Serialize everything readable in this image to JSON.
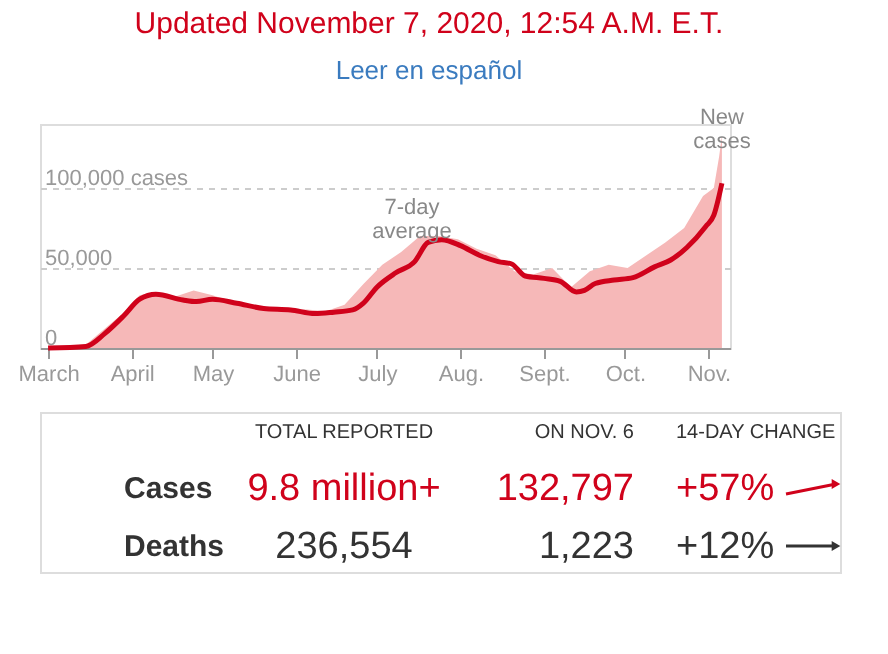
{
  "chart_data": {
    "type": "area",
    "title": "Updated November 7, 2020, 12:54 A.M. E.T.",
    "subtitle": "Leer en español",
    "xlim": [
      "2020-02-27",
      "2020-11-09"
    ],
    "xticks": [
      {
        "value": "2020-03-01",
        "label": "March"
      },
      {
        "value": "2020-04-01",
        "label": "April"
      },
      {
        "value": "2020-05-01",
        "label": "May"
      },
      {
        "value": "2020-06-01",
        "label": "June"
      },
      {
        "value": "2020-07-01",
        "label": "July"
      },
      {
        "value": "2020-08-01",
        "label": "Aug."
      },
      {
        "value": "2020-09-01",
        "label": "Sept."
      },
      {
        "value": "2020-10-01",
        "label": "Oct."
      },
      {
        "value": "2020-11-01",
        "label": "Nov."
      }
    ],
    "ylim": [
      0,
      140000
    ],
    "yticks": [
      0,
      {
        "value": 50000,
        "label": "50,000"
      },
      {
        "value": 100000,
        "label": "100,000 cases"
      }
    ],
    "grid": "y",
    "series": [
      {
        "color": "#f6b8b8",
        "x": [
          "2020-03-01",
          "2020-03-15",
          "2020-03-22",
          "2020-03-29",
          "2020-04-04",
          "2020-04-10",
          "2020-04-17",
          "2020-04-24",
          "2020-05-01",
          "2020-05-08",
          "2020-05-15",
          "2020-05-22",
          "2020-05-29",
          "2020-06-05",
          "2020-06-12",
          "2020-06-19",
          "2020-06-26",
          "2020-07-03",
          "2020-07-10",
          "2020-07-17",
          "2020-07-24",
          "2020-07-31",
          "2020-08-07",
          "2020-08-14",
          "2020-08-21",
          "2020-08-28",
          "2020-09-04",
          "2020-09-11",
          "2020-09-18",
          "2020-09-25",
          "2020-10-02",
          "2020-10-09",
          "2020-10-16",
          "2020-10-23",
          "2020-10-30",
          "2020-11-03",
          "2020-11-05",
          "2020-11-06"
        ],
        "values": [
          0,
          2000,
          12000,
          22000,
          33000,
          35000,
          32000,
          36000,
          33000,
          29000,
          27000,
          25000,
          24000,
          24000,
          23000,
          27000,
          40000,
          52000,
          60000,
          70000,
          70000,
          68000,
          62000,
          58000,
          48000,
          46000,
          50000,
          38000,
          48000,
          52000,
          50000,
          58000,
          66000,
          75000,
          95000,
          100000,
          120000,
          132797
        ]
      },
      {
        "type": "line",
        "color": "#d0021b",
        "x": [
          "2020-03-01",
          "2020-03-15",
          "2020-03-22",
          "2020-03-29",
          "2020-04-04",
          "2020-04-10",
          "2020-04-20",
          "2020-04-25",
          "2020-05-01",
          "2020-05-10",
          "2020-05-20",
          "2020-05-30",
          "2020-06-08",
          "2020-06-15",
          "2020-06-22",
          "2020-06-26",
          "2020-07-01",
          "2020-07-08",
          "2020-07-15",
          "2020-07-20",
          "2020-07-25",
          "2020-08-01",
          "2020-08-08",
          "2020-08-15",
          "2020-08-20",
          "2020-08-25",
          "2020-09-01",
          "2020-09-07",
          "2020-09-13",
          "2020-09-16",
          "2020-09-20",
          "2020-09-27",
          "2020-10-04",
          "2020-10-12",
          "2020-10-18",
          "2020-10-24",
          "2020-10-31",
          "2020-11-03",
          "2020-11-06"
        ],
        "values": [
          0,
          1000,
          9000,
          20000,
          30500,
          33600,
          30000,
          29000,
          30500,
          28000,
          24700,
          23800,
          21500,
          22400,
          23800,
          28000,
          38000,
          47000,
          54000,
          66000,
          67700,
          64000,
          58000,
          54000,
          52500,
          45000,
          43500,
          41700,
          35000,
          36000,
          40300,
          42500,
          44000,
          50700,
          55000,
          62800,
          76000,
          83000,
          103000
        ]
      }
    ],
    "annotations": [
      {
        "text": "7-day average",
        "x": "2020-07-14",
        "y": 54000
      },
      {
        "text": "New cases",
        "x": "2020-11-06",
        "y": 110000
      },
      "TOTAL REPORTED",
      "ON NOV. 6",
      "14-DAY CHANGE",
      "Cases",
      "9.8 million+",
      "132,797",
      "+57%",
      "Deaths",
      "236,554",
      "1,223",
      "+12%"
    ]
  }
}
